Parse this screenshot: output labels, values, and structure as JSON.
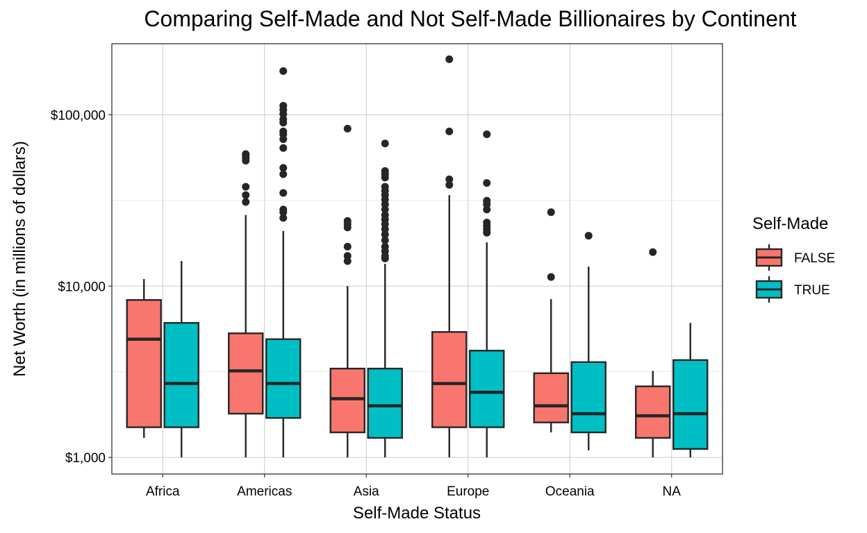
{
  "chart_data": {
    "type": "boxplot",
    "title": "Comparing Self-Made and Not Self-Made Billionaires by Continent",
    "xlabel": "Self-Made Status",
    "ylabel": "Net Worth (in millions of dollars)",
    "y_scale": "log10",
    "ylim": [
      800,
      260000
    ],
    "y_ticks": [
      {
        "value": 1000,
        "label": "$1,000"
      },
      {
        "value": 10000,
        "label": "$10,000"
      },
      {
        "value": 100000,
        "label": "$100,000"
      }
    ],
    "y_minor_ticks": [
      3162,
      31623
    ],
    "categories": [
      "Africa",
      "Americas",
      "Asia",
      "Europe",
      "Oceania",
      "NA"
    ],
    "grid": true,
    "legend": {
      "title": "Self-Made",
      "position": "right",
      "entries": [
        {
          "label": "FALSE",
          "color": "#F8766D"
        },
        {
          "label": "TRUE",
          "color": "#00BFC4"
        }
      ]
    },
    "series": [
      {
        "key": "FALSE",
        "color": "#F8766D",
        "boxes": [
          {
            "q1": 1500,
            "median": 4900,
            "q3": 8300,
            "whisker_low": 1300,
            "whisker_high": 11000,
            "outliers": []
          },
          {
            "q1": 1800,
            "median": 3200,
            "q3": 5300,
            "whisker_low": 1000,
            "whisker_high": 26000,
            "outliers": [
              31000,
              34000,
              38000,
              54000,
              56000,
              58000,
              59000
            ]
          },
          {
            "q1": 1400,
            "median": 2200,
            "q3": 3300,
            "whisker_low": 1000,
            "whisker_high": 10000,
            "outliers": [
              14000,
              15000,
              17000,
              22000,
              23000,
              24000,
              83000
            ]
          },
          {
            "q1": 1500,
            "median": 2700,
            "q3": 5400,
            "whisker_low": 1000,
            "whisker_high": 34000,
            "outliers": [
              39000,
              42000,
              80000,
              211000
            ]
          },
          {
            "q1": 1600,
            "median": 2000,
            "q3": 3100,
            "whisker_low": 1400,
            "whisker_high": 8400,
            "outliers": [
              11300,
              27000
            ]
          },
          {
            "q1": 1300,
            "median": 1750,
            "q3": 2600,
            "whisker_low": 1000,
            "whisker_high": 3200,
            "outliers": [
              15800
            ]
          }
        ]
      },
      {
        "key": "TRUE",
        "color": "#00BFC4",
        "boxes": [
          {
            "q1": 1500,
            "median": 2700,
            "q3": 6100,
            "whisker_low": 1000,
            "whisker_high": 14000,
            "outliers": []
          },
          {
            "q1": 1700,
            "median": 2700,
            "q3": 4900,
            "whisker_low": 1000,
            "whisker_high": 21000,
            "outliers": [
              25000,
              27000,
              28000,
              35000,
              45000,
              49000,
              64000,
              72000,
              77000,
              80000,
              90000,
              94000,
              101000,
              107000,
              113000,
              180000
            ]
          },
          {
            "q1": 1300,
            "median": 2000,
            "q3": 3300,
            "whisker_low": 1000,
            "whisker_high": 13500,
            "outliers": [
              14500,
              15000,
              16000,
              17000,
              18500,
              20000,
              21500,
              23000,
              24500,
              26000,
              28000,
              30000,
              32000,
              34000,
              36000,
              38000,
              43000,
              45000,
              47000,
              68000
            ]
          },
          {
            "q1": 1500,
            "median": 2400,
            "q3": 4200,
            "whisker_low": 1000,
            "whisker_high": 18000,
            "outliers": [
              20500,
              21500,
              22500,
              23500,
              28000,
              30000,
              31500,
              40000,
              77000
            ]
          },
          {
            "q1": 1400,
            "median": 1800,
            "q3": 3600,
            "whisker_low": 1100,
            "whisker_high": 13000,
            "outliers": [
              19700
            ]
          },
          {
            "q1": 1120,
            "median": 1800,
            "q3": 3700,
            "whisker_low": 1000,
            "whisker_high": 6100,
            "outliers": []
          }
        ]
      }
    ]
  }
}
